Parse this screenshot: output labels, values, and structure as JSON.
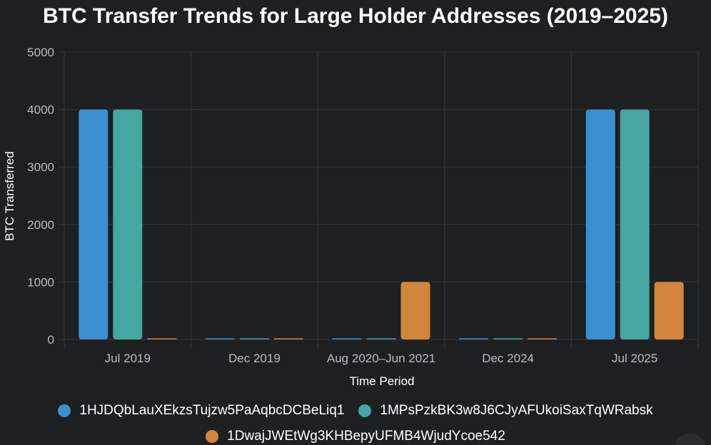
{
  "chart_data": {
    "type": "bar",
    "title": "BTC Transfer Trends for Large Holder Addresses (2019–2025)",
    "xlabel": "Time Period",
    "ylabel": "BTC Transferred",
    "ylim": [
      0,
      5000
    ],
    "yticks": [
      0,
      1000,
      2000,
      3000,
      4000,
      5000
    ],
    "grid": true,
    "legend_position": "bottom",
    "categories": [
      "Jul 2019",
      "Dec 2019",
      "Aug 2020–Jun 2021",
      "Dec 2024",
      "Jul 2025"
    ],
    "series": [
      {
        "name": "1HJDQbLauXEkzsTujzw5PaAqbcDCBeLiq1",
        "color": "#3a8fd1",
        "values": [
          4000,
          0,
          0,
          0,
          4000
        ]
      },
      {
        "name": "1MPsPzkBK3w8J6CJyAFUkoiSaxTqWRabsk",
        "color": "#45a6a2",
        "values": [
          4000,
          0,
          0,
          0,
          4000
        ]
      },
      {
        "name": "1DwajJWEtWg3KHBepyUFMB4WjudYcoe542",
        "color": "#d3863b",
        "values": [
          0,
          0,
          1000,
          0,
          1000
        ]
      }
    ]
  }
}
